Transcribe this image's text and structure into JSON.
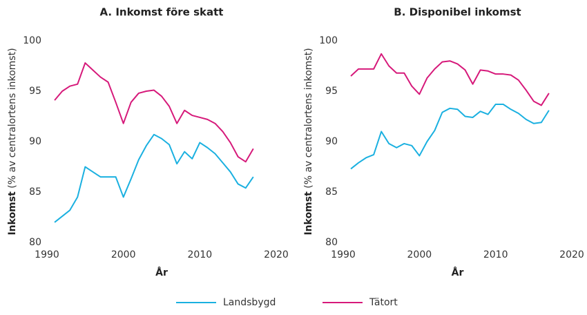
{
  "chart_data": [
    {
      "type": "line",
      "title": "A. Inkomst före skatt",
      "ylabel": {
        "main": "Inkomst",
        "unit": "(% av centralortens inkomst)"
      },
      "xlabel": "År",
      "x": [
        1991,
        1992,
        1993,
        1994,
        1995,
        1996,
        1997,
        1998,
        1999,
        2000,
        2001,
        2002,
        2003,
        2004,
        2005,
        2006,
        2007,
        2008,
        2009,
        2010,
        2011,
        2012,
        2013,
        2014,
        2015,
        2016,
        2017
      ],
      "series": [
        {
          "name": "Landsbygd",
          "color": "#1ab0e0",
          "values": [
            82.0,
            82.6,
            83.2,
            84.5,
            87.5,
            87.0,
            86.5,
            86.5,
            86.5,
            84.5,
            86.3,
            88.2,
            89.6,
            90.7,
            90.3,
            89.7,
            87.8,
            89.0,
            88.3,
            89.9,
            89.4,
            88.8,
            87.9,
            87.0,
            85.8,
            85.4,
            86.5
          ]
        },
        {
          "name": "Tätort",
          "color": "#d6197a",
          "values": [
            94.1,
            95.0,
            95.5,
            95.7,
            97.8,
            97.1,
            96.4,
            95.9,
            93.9,
            91.8,
            93.9,
            94.8,
            95.0,
            95.1,
            94.5,
            93.5,
            91.8,
            93.1,
            92.6,
            92.4,
            92.2,
            91.8,
            91.0,
            89.9,
            88.5,
            88.0,
            89.3
          ]
        }
      ],
      "xlim": [
        1990,
        2020
      ],
      "xticks": [
        1990,
        2000,
        2010,
        2020
      ],
      "ylim": [
        80,
        100
      ],
      "yticks": [
        80,
        85,
        90,
        95,
        100
      ]
    },
    {
      "type": "line",
      "title": "B. Disponibel inkomst",
      "ylabel": {
        "main": "Inkomst",
        "unit": "(% av centralortens inkomst)"
      },
      "xlabel": "År",
      "x": [
        1991,
        1992,
        1993,
        1994,
        1995,
        1996,
        1997,
        1998,
        1999,
        2000,
        2001,
        2002,
        2003,
        2004,
        2005,
        2006,
        2007,
        2008,
        2009,
        2010,
        2011,
        2012,
        2013,
        2014,
        2015,
        2016,
        2017
      ],
      "series": [
        {
          "name": "Landsbygd",
          "color": "#1ab0e0",
          "values": [
            87.3,
            87.9,
            88.4,
            88.7,
            91.0,
            89.8,
            89.4,
            89.8,
            89.6,
            88.6,
            90.0,
            91.1,
            92.9,
            93.3,
            93.2,
            92.5,
            92.4,
            93.0,
            92.7,
            93.7,
            93.7,
            93.2,
            92.8,
            92.2,
            91.8,
            91.9,
            93.1
          ]
        },
        {
          "name": "Tätort",
          "color": "#d6197a",
          "values": [
            96.5,
            97.2,
            97.2,
            97.2,
            98.7,
            97.5,
            96.8,
            96.8,
            95.5,
            94.7,
            96.3,
            97.2,
            97.9,
            98.0,
            97.7,
            97.1,
            95.7,
            97.1,
            97.0,
            96.7,
            96.7,
            96.6,
            96.1,
            95.1,
            94.0,
            93.6,
            94.8
          ]
        }
      ],
      "xlim": [
        1990,
        2020
      ],
      "xticks": [
        1990,
        2000,
        2010,
        2020
      ],
      "ylim": [
        80,
        100
      ],
      "yticks": [
        80,
        85,
        90,
        95,
        100
      ]
    }
  ]
}
